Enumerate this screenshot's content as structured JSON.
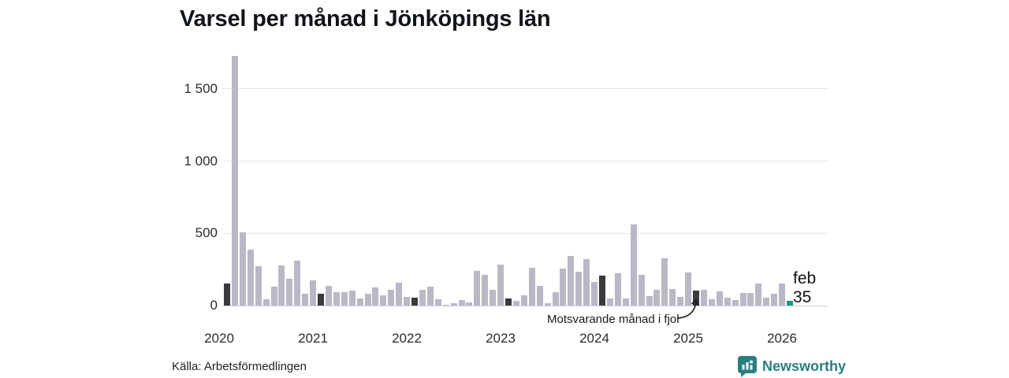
{
  "title": "Varsel per månad i Jönköpings län",
  "source": "Källa: Arbetsförmedlingen",
  "branding": {
    "name": "Newsworthy"
  },
  "annotation": {
    "text": "Motsvarande månad i fjol"
  },
  "current_point_label": {
    "month": "feb",
    "value": "35"
  },
  "colors": {
    "bar": "#bcb7c7",
    "highlight_dark": "#3b3840",
    "current": "#149a8c",
    "grid": "#e7e5ec",
    "grid_zero": "#cfccd6",
    "brand": "#297e7f",
    "text": "#2b2b2b"
  },
  "chart_data": {
    "type": "bar",
    "title": "Varsel per månad i Jönköpings län",
    "xlabel": "",
    "ylabel": "",
    "ylim": [
      0,
      1750
    ],
    "grid": true,
    "legend": false,
    "yticks": [
      0,
      500,
      1000,
      1500
    ],
    "ytick_labels": [
      "0",
      "500",
      "1 000",
      "1 500"
    ],
    "x_year_labels": [
      "2020",
      "2021",
      "2022",
      "2023",
      "2024",
      "2025",
      "2026"
    ],
    "highlight_meaning": "dark bars = februari varje år (motsvarande månad), teal bar = feb 2026",
    "series": [
      {
        "label": "feb 2020",
        "value": 155,
        "kind": "dark"
      },
      {
        "label": "mar 2020",
        "value": 1730,
        "kind": "normal"
      },
      {
        "label": "apr 2020",
        "value": 505,
        "kind": "normal"
      },
      {
        "label": "maj 2020",
        "value": 385,
        "kind": "normal"
      },
      {
        "label": "jun 2020",
        "value": 270,
        "kind": "normal"
      },
      {
        "label": "jul 2020",
        "value": 45,
        "kind": "normal"
      },
      {
        "label": "aug 2020",
        "value": 130,
        "kind": "normal"
      },
      {
        "label": "sep 2020",
        "value": 280,
        "kind": "normal"
      },
      {
        "label": "okt 2020",
        "value": 185,
        "kind": "normal"
      },
      {
        "label": "nov 2020",
        "value": 310,
        "kind": "normal"
      },
      {
        "label": "dec 2020",
        "value": 80,
        "kind": "normal"
      },
      {
        "label": "jan 2021",
        "value": 175,
        "kind": "normal"
      },
      {
        "label": "feb 2021",
        "value": 80,
        "kind": "dark"
      },
      {
        "label": "mar 2021",
        "value": 135,
        "kind": "normal"
      },
      {
        "label": "apr 2021",
        "value": 92,
        "kind": "normal"
      },
      {
        "label": "maj 2021",
        "value": 92,
        "kind": "normal"
      },
      {
        "label": "jun 2021",
        "value": 104,
        "kind": "normal"
      },
      {
        "label": "jul 2021",
        "value": 47,
        "kind": "normal"
      },
      {
        "label": "aug 2021",
        "value": 80,
        "kind": "normal"
      },
      {
        "label": "sep 2021",
        "value": 125,
        "kind": "normal"
      },
      {
        "label": "okt 2021",
        "value": 73,
        "kind": "normal"
      },
      {
        "label": "nov 2021",
        "value": 107,
        "kind": "normal"
      },
      {
        "label": "dec 2021",
        "value": 156,
        "kind": "normal"
      },
      {
        "label": "jan 2022",
        "value": 62,
        "kind": "normal"
      },
      {
        "label": "feb 2022",
        "value": 53,
        "kind": "dark"
      },
      {
        "label": "mar 2022",
        "value": 110,
        "kind": "normal"
      },
      {
        "label": "apr 2022",
        "value": 130,
        "kind": "normal"
      },
      {
        "label": "maj 2022",
        "value": 44,
        "kind": "normal"
      },
      {
        "label": "jun 2022",
        "value": 4,
        "kind": "normal"
      },
      {
        "label": "jul 2022",
        "value": 15,
        "kind": "normal"
      },
      {
        "label": "aug 2022",
        "value": 40,
        "kind": "normal"
      },
      {
        "label": "sep 2022",
        "value": 22,
        "kind": "normal"
      },
      {
        "label": "okt 2022",
        "value": 238,
        "kind": "normal"
      },
      {
        "label": "nov 2022",
        "value": 213,
        "kind": "normal"
      },
      {
        "label": "dec 2022",
        "value": 111,
        "kind": "normal"
      },
      {
        "label": "jan 2023",
        "value": 285,
        "kind": "normal"
      },
      {
        "label": "feb 2023",
        "value": 49,
        "kind": "dark"
      },
      {
        "label": "mar 2023",
        "value": 30,
        "kind": "normal"
      },
      {
        "label": "apr 2023",
        "value": 70,
        "kind": "normal"
      },
      {
        "label": "maj 2023",
        "value": 260,
        "kind": "normal"
      },
      {
        "label": "jun 2023",
        "value": 138,
        "kind": "normal"
      },
      {
        "label": "jul 2023",
        "value": 16,
        "kind": "normal"
      },
      {
        "label": "aug 2023",
        "value": 90,
        "kind": "normal"
      },
      {
        "label": "sep 2023",
        "value": 255,
        "kind": "normal"
      },
      {
        "label": "okt 2023",
        "value": 345,
        "kind": "normal"
      },
      {
        "label": "nov 2023",
        "value": 235,
        "kind": "normal"
      },
      {
        "label": "dec 2023",
        "value": 320,
        "kind": "normal"
      },
      {
        "label": "jan 2024",
        "value": 165,
        "kind": "normal"
      },
      {
        "label": "feb 2024",
        "value": 207,
        "kind": "dark"
      },
      {
        "label": "mar 2024",
        "value": 49,
        "kind": "normal"
      },
      {
        "label": "apr 2024",
        "value": 225,
        "kind": "normal"
      },
      {
        "label": "maj 2024",
        "value": 49,
        "kind": "normal"
      },
      {
        "label": "jun 2024",
        "value": 560,
        "kind": "normal"
      },
      {
        "label": "jul 2024",
        "value": 212,
        "kind": "normal"
      },
      {
        "label": "aug 2024",
        "value": 65,
        "kind": "normal"
      },
      {
        "label": "sep 2024",
        "value": 107,
        "kind": "normal"
      },
      {
        "label": "okt 2024",
        "value": 325,
        "kind": "normal"
      },
      {
        "label": "nov 2024",
        "value": 115,
        "kind": "normal"
      },
      {
        "label": "dec 2024",
        "value": 60,
        "kind": "normal"
      },
      {
        "label": "jan 2025",
        "value": 230,
        "kind": "normal"
      },
      {
        "label": "feb 2025",
        "value": 105,
        "kind": "dark"
      },
      {
        "label": "mar 2025",
        "value": 110,
        "kind": "normal"
      },
      {
        "label": "apr 2025",
        "value": 45,
        "kind": "normal"
      },
      {
        "label": "maj 2025",
        "value": 100,
        "kind": "normal"
      },
      {
        "label": "jun 2025",
        "value": 55,
        "kind": "normal"
      },
      {
        "label": "jul 2025",
        "value": 40,
        "kind": "normal"
      },
      {
        "label": "aug 2025",
        "value": 85,
        "kind": "normal"
      },
      {
        "label": "sep 2025",
        "value": 85,
        "kind": "normal"
      },
      {
        "label": "okt 2025",
        "value": 150,
        "kind": "normal"
      },
      {
        "label": "nov 2025",
        "value": 55,
        "kind": "normal"
      },
      {
        "label": "dec 2025",
        "value": 82,
        "kind": "normal"
      },
      {
        "label": "jan 2026",
        "value": 153,
        "kind": "normal"
      },
      {
        "label": "feb 2026",
        "value": 35,
        "kind": "current"
      }
    ]
  }
}
